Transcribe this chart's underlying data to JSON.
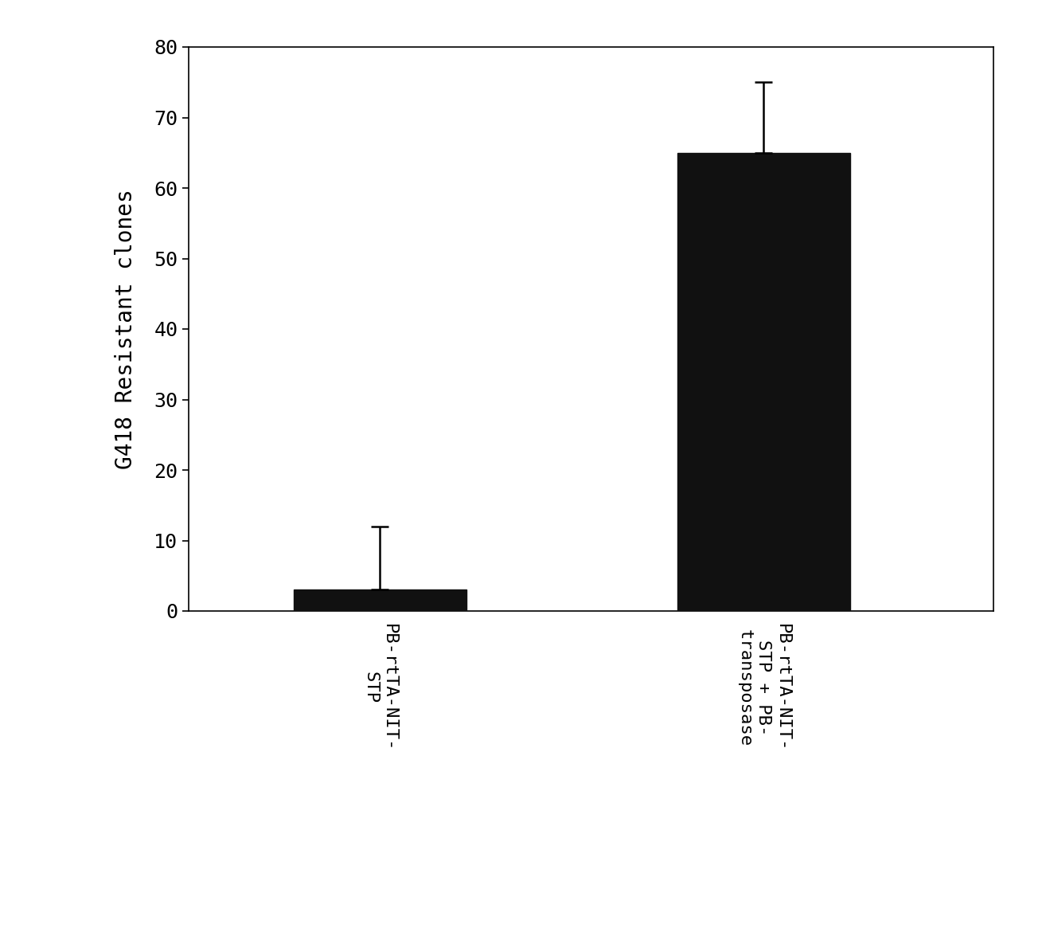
{
  "categories": [
    "PB-rtTA-NIT-\nSTP",
    "PB-rtTA-NIT-\nSTP + PB-\ntransposase"
  ],
  "values": [
    3.0,
    65.0
  ],
  "errors": [
    9.0,
    10.0
  ],
  "bar_color": "#111111",
  "ylabel": "G418 Resistant clones",
  "ylim": [
    0,
    80
  ],
  "yticks": [
    0,
    10,
    20,
    30,
    40,
    50,
    60,
    70,
    80
  ],
  "background_color": "#ffffff",
  "plot_bg_color": "#ffffff",
  "ylabel_fontsize": 20,
  "tick_fontsize": 18,
  "xlabel_fontsize": 16,
  "error_capsize": 8,
  "error_linewidth": 1.8,
  "font_family": "monospace"
}
